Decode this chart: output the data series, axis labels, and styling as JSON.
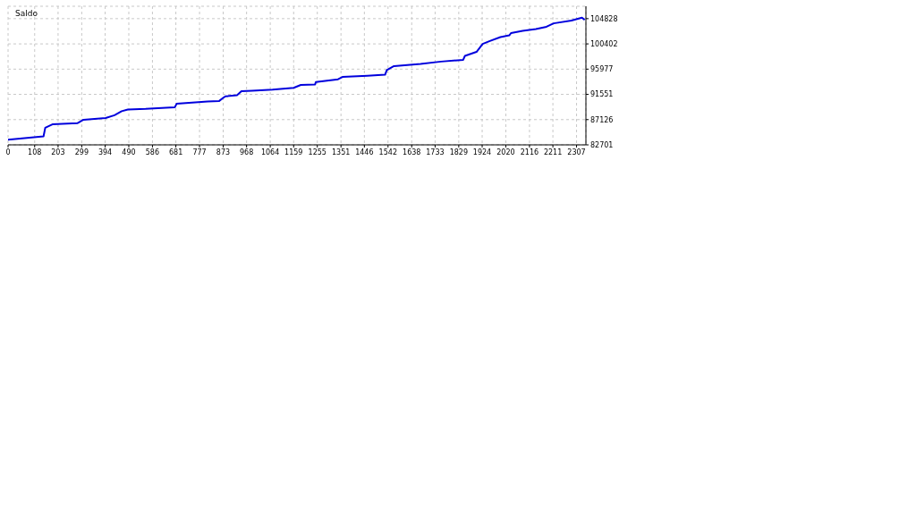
{
  "chart_data": {
    "type": "line",
    "title": "Saldo",
    "x": [
      0,
      144,
      151,
      180,
      281,
      306,
      396,
      432,
      461,
      486,
      558,
      641,
      677,
      684,
      810,
      857,
      875,
      882,
      929,
      947,
      990,
      1073,
      1159,
      1188,
      1246,
      1249,
      1339,
      1357,
      1458,
      1530,
      1537,
      1566,
      1674,
      1757,
      1847,
      1854,
      1901,
      1926,
      1955,
      1998,
      2034,
      2041,
      2088,
      2142,
      2185,
      2214,
      2286,
      2329,
      2340
    ],
    "series": [
      {
        "color": "#0000dd",
        "values": [
          83600,
          84200,
          85700,
          86300,
          86500,
          87100,
          87400,
          87900,
          88600,
          88900,
          89000,
          89200,
          89300,
          89900,
          90300,
          90400,
          91000,
          91200,
          91400,
          92100,
          92200,
          92400,
          92700,
          93200,
          93300,
          93700,
          94200,
          94600,
          94800,
          95000,
          95800,
          96500,
          96900,
          97300,
          97600,
          98300,
          99000,
          100400,
          100900,
          101600,
          101900,
          102300,
          102700,
          103000,
          103400,
          104000,
          104500,
          105000,
          104600
        ]
      }
    ],
    "xlim": [
      0,
      2345
    ],
    "xticks": [
      0,
      108,
      203,
      299,
      394,
      490,
      586,
      681,
      777,
      873,
      968,
      1064,
      1159,
      1255,
      1351,
      1446,
      1542,
      1638,
      1733,
      1829,
      1924,
      2020,
      2116,
      2211,
      2307
    ],
    "ylim": [
      82701,
      107000
    ],
    "yticks": [
      82701,
      87126,
      91551,
      95977,
      100402,
      104828
    ],
    "grid": true,
    "marker": "none",
    "line_style": "solid"
  }
}
